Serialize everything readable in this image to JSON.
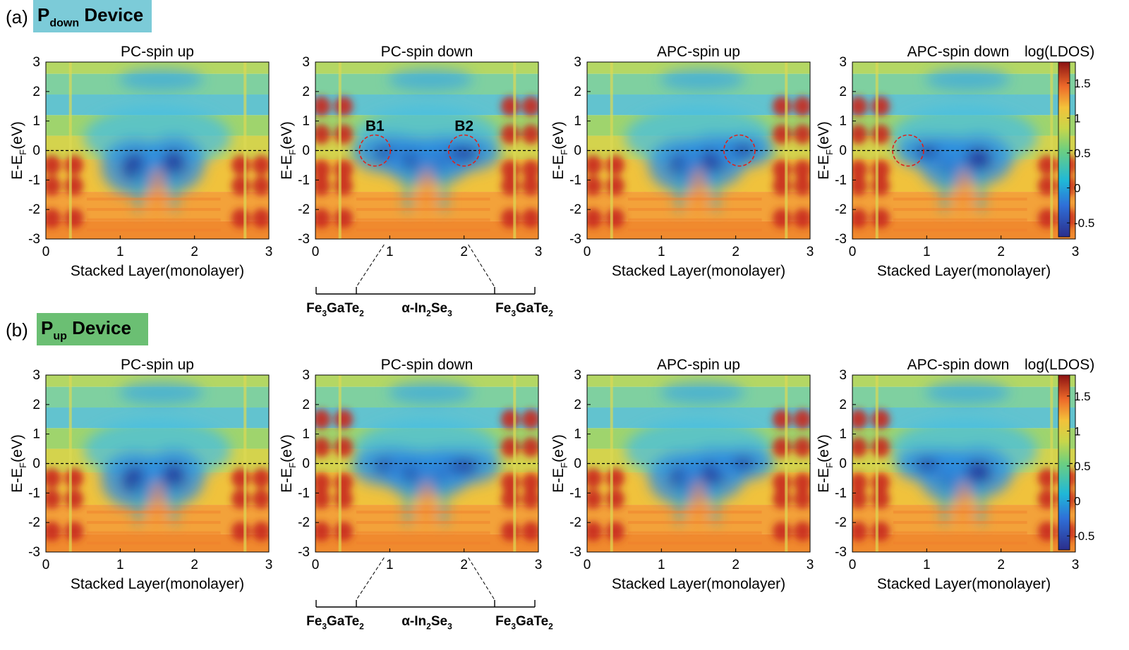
{
  "sections": [
    {
      "tag": "(a)",
      "device_main": "P",
      "device_sub": "down",
      "device_suffix": " Device",
      "badge_color": "#7ccbd8"
    },
    {
      "tag": "(b)",
      "device_main": "P",
      "device_sub": "up",
      "device_suffix": " Device",
      "badge_color": "#6bbf73"
    }
  ],
  "panel_titles": [
    "PC-spin up",
    "PC-spin down",
    "APC-spin up",
    "APC-spin down"
  ],
  "ylabel": {
    "main": "E-E",
    "sub": "F",
    "tail": "(eV)"
  },
  "xlabel": "Stacked Layer(monolayer)",
  "colorbar": {
    "label": "log(LDOS)",
    "ticks": [
      "1.5",
      "1",
      "0.5",
      "0",
      "-0.5"
    ],
    "range": [
      -0.7,
      1.8
    ]
  },
  "region_labels": [
    {
      "main": "Fe",
      "sub": "3",
      "tail": "GaTe",
      "sub2": "2"
    },
    {
      "main": "α-In",
      "sub": "2",
      "tail": "Se",
      "sub2": "3"
    },
    {
      "main": "Fe",
      "sub": "3",
      "tail": "GaTe",
      "sub2": "2"
    }
  ],
  "circle_labels": [
    "B1",
    "B2"
  ],
  "chart_data": [
    {
      "type": "heatmap",
      "title": "PC-spin up",
      "xlim": [
        0,
        3
      ],
      "ylim": [
        -3,
        3
      ],
      "xticks": [
        "0",
        "1",
        "2",
        "3"
      ],
      "yticks": [
        "3",
        "2",
        "1",
        "0",
        "-1",
        "-2",
        "-3"
      ],
      "fermi_level": 0
    },
    {
      "type": "heatmap",
      "title": "PC-spin down",
      "xlim": [
        0,
        3
      ],
      "ylim": [
        -3,
        3
      ],
      "xticks": [
        "0",
        "1",
        "2",
        "3"
      ],
      "yticks": [
        "3",
        "2",
        "1",
        "0",
        "-1",
        "-2",
        "-3"
      ],
      "fermi_level": 0
    },
    {
      "type": "heatmap",
      "title": "APC-spin up",
      "xlim": [
        0,
        3
      ],
      "ylim": [
        -3,
        3
      ],
      "xticks": [
        "0",
        "1",
        "2",
        "3"
      ],
      "yticks": [
        "3",
        "2",
        "1",
        "0",
        "-1",
        "-2",
        "-3"
      ],
      "fermi_level": 0
    },
    {
      "type": "heatmap",
      "title": "APC-spin down",
      "xlim": [
        0,
        3
      ],
      "ylim": [
        -3,
        3
      ],
      "xticks": [
        "0",
        "1",
        "2",
        "3"
      ],
      "yticks": [
        "3",
        "2",
        "1",
        "0",
        "-1",
        "-2",
        "-3"
      ],
      "fermi_level": 0
    }
  ]
}
